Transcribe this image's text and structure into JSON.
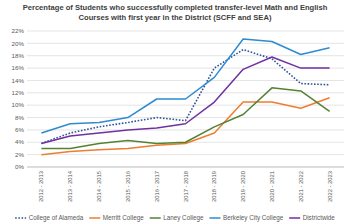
{
  "chart_data": {
    "type": "line",
    "title": "Percentage of Students who successfully completed transfer-level Math and English Courses with first year in the District (SCFF and SEA)",
    "categories": [
      "2012 - 2013",
      "2013 - 2014",
      "2014 - 2015",
      "2015 - 2016",
      "2016 - 2017",
      "2017 - 2018",
      "2018 - 2019",
      "2019 - 2020",
      "2020 - 2021",
      "2021 - 2022",
      "2022 - 2023"
    ],
    "series": [
      {
        "name": "College of Alameda",
        "color": "#2f5597",
        "line_style": "dotted",
        "values": [
          3.8,
          5.5,
          6.5,
          7.2,
          8,
          7.5,
          16,
          19,
          17.5,
          13.5,
          13.3
        ]
      },
      {
        "name": "Merritt College",
        "color": "#ed7d31",
        "line_style": "solid",
        "values": [
          2,
          2.5,
          2.8,
          3,
          3.5,
          3.8,
          5.5,
          10.5,
          10.5,
          9.5,
          11.2
        ]
      },
      {
        "name": "Laney College",
        "color": "#548235",
        "line_style": "solid",
        "values": [
          3,
          3,
          3.8,
          4.3,
          3.8,
          4,
          6.5,
          8.5,
          12.8,
          12.3,
          9
        ]
      },
      {
        "name": "Berkeley City College",
        "color": "#2e8bd0",
        "line_style": "solid",
        "values": [
          5.5,
          7,
          7.2,
          8,
          11,
          11,
          14.5,
          20.7,
          20.3,
          18.2,
          19.3
        ]
      },
      {
        "name": "Districtwide",
        "color": "#7030a0",
        "line_style": "solid",
        "values": [
          3.8,
          5,
          5.5,
          6,
          6.3,
          7,
          10.5,
          15.8,
          17.8,
          16,
          16
        ]
      }
    ],
    "ylim": [
      0,
      22
    ],
    "yticks": [
      {
        "value": 0,
        "label": "0%"
      },
      {
        "value": 2,
        "label": "2%"
      },
      {
        "value": 4,
        "label": "4%"
      },
      {
        "value": 6,
        "label": "6%"
      },
      {
        "value": 8,
        "label": "8%"
      },
      {
        "value": 10,
        "label": "10%"
      },
      {
        "value": 12,
        "label": "12%"
      },
      {
        "value": 14,
        "label": "14%"
      },
      {
        "value": 16,
        "label": "16%"
      },
      {
        "value": 18,
        "label": "18%"
      },
      {
        "value": 20,
        "label": "20%"
      },
      {
        "value": 22,
        "label": "22%"
      }
    ],
    "grid": true,
    "legend": "bottom"
  }
}
